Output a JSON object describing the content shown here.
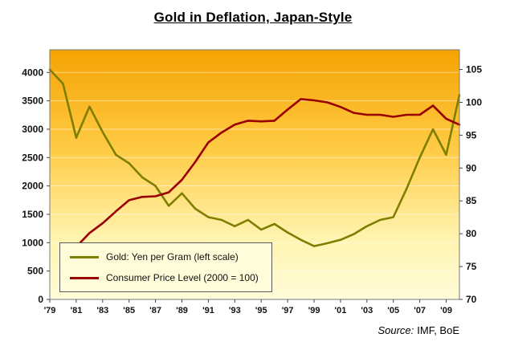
{
  "title": "Gold in Deflation, Japan-Style",
  "source": {
    "prefix": "Source:",
    "text": "IMF, BoE"
  },
  "legend": {
    "items": [
      {
        "label": "Gold: Yen per Gram (left scale)",
        "color": "#7e7e00"
      },
      {
        "label": "Consumer Price Level (2000 = 100)",
        "color": "#990000"
      }
    ]
  },
  "chart_data": {
    "type": "line",
    "title": "Gold in Deflation, Japan-Style",
    "x": [
      1979,
      1980,
      1981,
      1982,
      1983,
      1984,
      1985,
      1986,
      1987,
      1988,
      1989,
      1990,
      1991,
      1992,
      1993,
      1994,
      1995,
      1996,
      1997,
      1998,
      1999,
      2000,
      2001,
      2002,
      2003,
      2004,
      2005,
      2006,
      2007,
      2008,
      2009,
      2010
    ],
    "series": [
      {
        "name": "Gold: Yen per Gram (left scale)",
        "axis": "left",
        "color": "#7e7e00",
        "values": [
          4050,
          3800,
          2850,
          3400,
          2950,
          2550,
          2400,
          2150,
          2000,
          1650,
          1870,
          1600,
          1450,
          1400,
          1290,
          1400,
          1230,
          1330,
          1180,
          1050,
          940,
          990,
          1050,
          1150,
          1290,
          1400,
          1450,
          1950,
          2500,
          3000,
          2550,
          3600
        ]
      },
      {
        "name": "Consumer Price Level (2000 = 100)",
        "axis": "right",
        "color": "#990000",
        "values": [
          null,
          74.5,
          78.0,
          80.1,
          81.6,
          83.4,
          85.1,
          85.6,
          85.7,
          86.3,
          88.2,
          90.9,
          93.9,
          95.4,
          96.6,
          97.2,
          97.1,
          97.2,
          98.9,
          100.5,
          100.3,
          100.0,
          99.3,
          98.4,
          98.1,
          98.1,
          97.8,
          98.1,
          98.1,
          99.5,
          97.5,
          96.6
        ]
      }
    ],
    "left_axis": {
      "min": 0,
      "max": 4400,
      "ticks": [
        0,
        500,
        1000,
        1500,
        2000,
        2500,
        3000,
        3500,
        4000
      ]
    },
    "right_axis": {
      "min": 70,
      "max": 108,
      "ticks": [
        70,
        75,
        80,
        85,
        90,
        95,
        100,
        105
      ]
    },
    "x_tick_years": [
      1979,
      1981,
      1983,
      1985,
      1987,
      1989,
      1991,
      1993,
      1995,
      1997,
      1999,
      2001,
      2003,
      2005,
      2007,
      2009
    ],
    "x_tick_labels": [
      "'79",
      "'81",
      "'83",
      "'85",
      "'87",
      "'89",
      "'91",
      "'93",
      "'95",
      "'97",
      "'99",
      "'01",
      "'03",
      "'05",
      "'07",
      "'09"
    ],
    "grid": true,
    "legend_position": "bottom-left",
    "plot_background_stops": [
      {
        "offset": "0%",
        "color": "#f5a302"
      },
      {
        "offset": "40%",
        "color": "#ffcb45"
      },
      {
        "offset": "75%",
        "color": "#fff3ae"
      },
      {
        "offset": "100%",
        "color": "#fffcd9"
      }
    ]
  }
}
